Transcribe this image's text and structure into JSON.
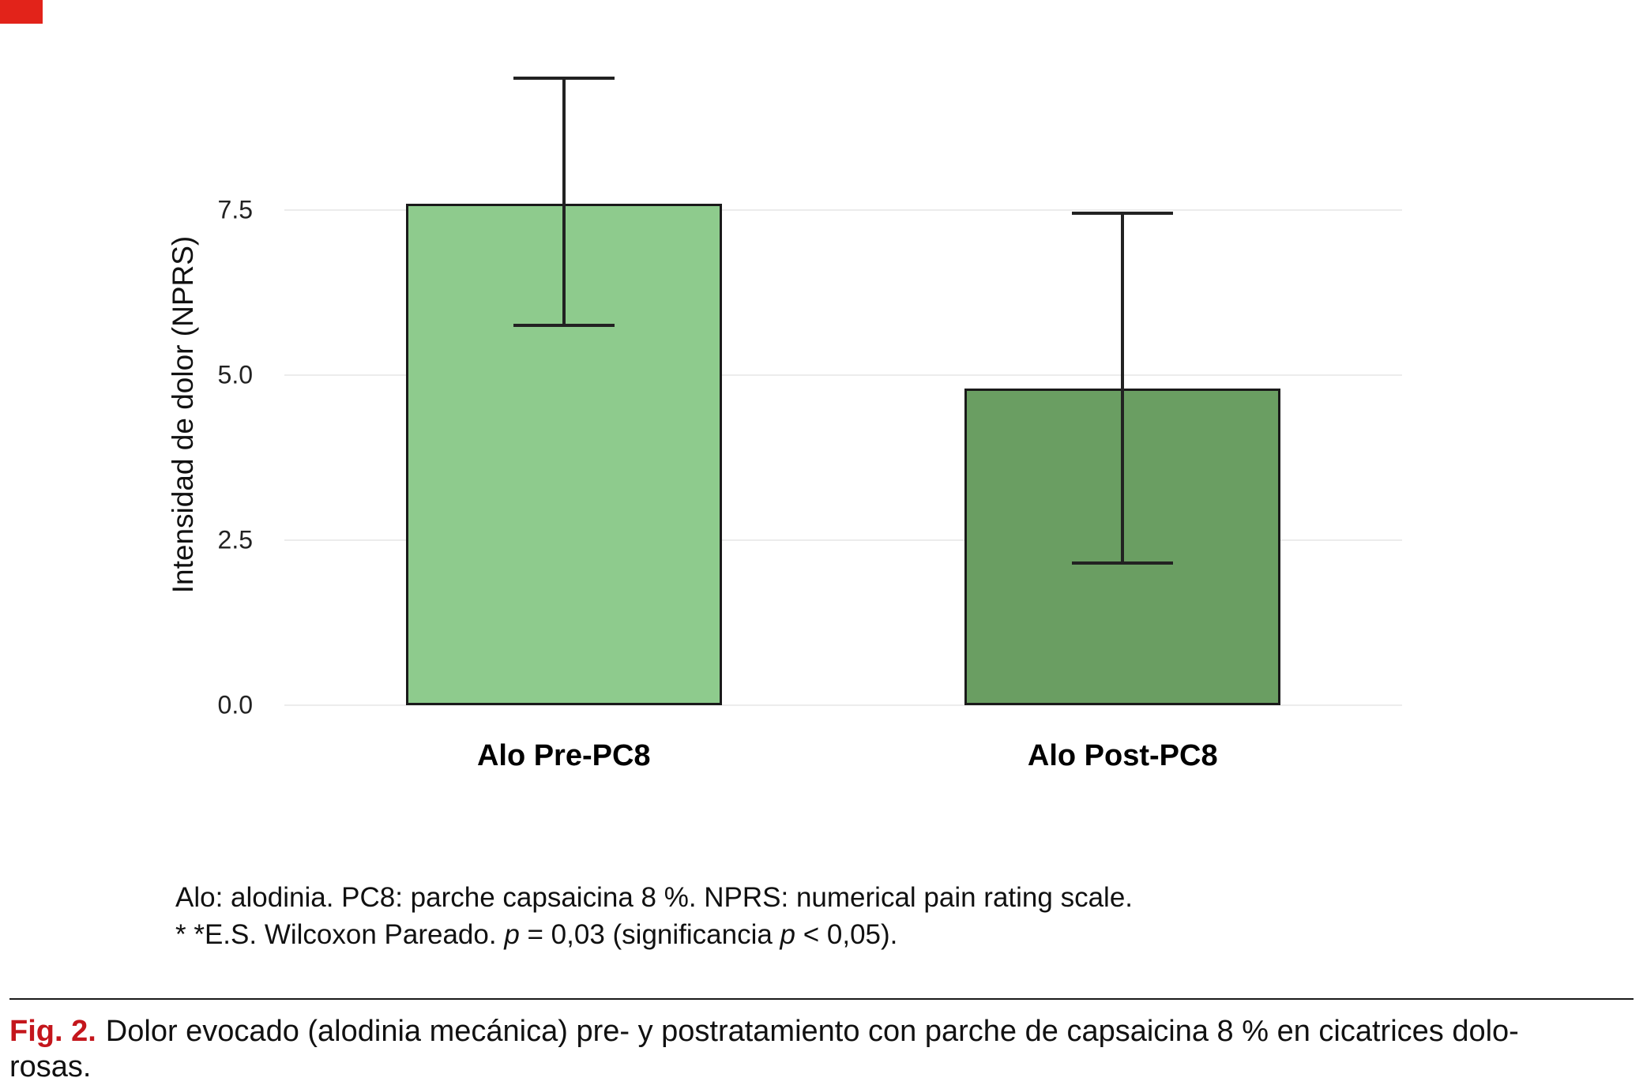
{
  "page": {
    "background": "#ffffff",
    "corner_mark_color": "#e2231a"
  },
  "chart_data": {
    "type": "bar",
    "title": "",
    "xlabel": "",
    "ylabel": "Intensidad de dolor (NPRS)",
    "categories": [
      "Alo Pre-PC8",
      "Alo Post-PC8"
    ],
    "values": [
      7.6,
      4.8
    ],
    "error_bars": [
      {
        "low": 5.75,
        "high": 9.5
      },
      {
        "low": 2.15,
        "high": 7.45
      }
    ],
    "bar_colors": [
      "#8ecb8d",
      "#6a9e62"
    ],
    "bar_border_color": "#1a1a1a",
    "ylim": [
      0,
      10
    ],
    "yticks": [
      0,
      2.5,
      5,
      7.5
    ],
    "ytick_labels": [
      "0.0",
      "2.5",
      "5.0",
      "7.5"
    ],
    "grid": "horizontal-major",
    "gridline_color": "#ececec",
    "legend": "none"
  },
  "footnotes": {
    "line1": "Alo: alodinia. PC8: parche capsaicina 8 %. NPRS: numerical pain rating scale.",
    "line2_segments": [
      {
        "text": "* *E.S. Wilcoxon Pareado. ",
        "italic": false
      },
      {
        "text": "p",
        "italic": true
      },
      {
        "text": " = 0,03 (significancia ",
        "italic": false
      },
      {
        "text": "p",
        "italic": true
      },
      {
        "text": " < 0,05).",
        "italic": false
      }
    ]
  },
  "caption": {
    "label": "Fig. 2.",
    "label_color": "#c4161c",
    "line1": "Dolor evocado (alodinia mecánica) pre- y postratamiento con parche de capsaicina 8 % en cicatrices dolo-",
    "line2": "rosas."
  }
}
